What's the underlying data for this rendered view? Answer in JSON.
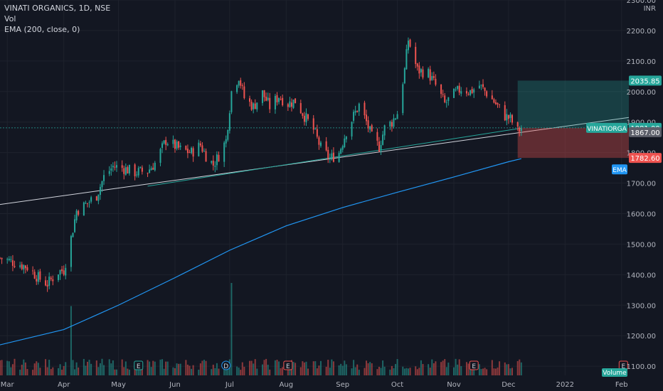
{
  "header": {
    "symbol_line": "VINATI ORGANICS, 1D, NSE",
    "volume_label": "Vol",
    "ema_label": "EMA (200, close, 0)"
  },
  "colors": {
    "background": "#131722",
    "grid": "#1e222d",
    "up": "#26a69a",
    "down": "#ef5350",
    "ema": "#2196f3",
    "trend_upper": "#d1d4dc",
    "trend_lower": "#26a69a",
    "target_zone": "#26a69a",
    "stop_zone": "#ef5350"
  },
  "chart_data": {
    "type": "candlestick",
    "y_axis": {
      "unit": "INR",
      "range": [
        1070,
        2300
      ],
      "ticks": [
        "2300.00",
        "2200.00",
        "2100.00",
        "2000.00",
        "1900.00",
        "1800.00",
        "1700.00",
        "1600.00",
        "1500.00",
        "1400.00",
        "1300.00",
        "1200.00",
        "1100.00"
      ],
      "tick_values": [
        2300,
        2200,
        2100,
        2000,
        1900,
        1800,
        1700,
        1600,
        1500,
        1400,
        1300,
        1200,
        1100
      ]
    },
    "x_axis": {
      "range": [
        "2021-02-25",
        "2022-02-05"
      ],
      "labels": [
        {
          "label": "Mar",
          "date": "2021-03-01"
        },
        {
          "label": "Apr",
          "date": "2021-04-01"
        },
        {
          "label": "May",
          "date": "2021-05-01"
        },
        {
          "label": "Jun",
          "date": "2021-06-01"
        },
        {
          "label": "Jul",
          "date": "2021-07-01"
        },
        {
          "label": "Aug",
          "date": "2021-08-01"
        },
        {
          "label": "Sep",
          "date": "2021-09-01"
        },
        {
          "label": "Oct",
          "date": "2021-10-01"
        },
        {
          "label": "Nov",
          "date": "2021-11-01"
        },
        {
          "label": "Dec",
          "date": "2021-12-01"
        },
        {
          "label": "2022",
          "date": "2022-01-01"
        },
        {
          "label": "Feb",
          "date": "2022-02-01"
        }
      ]
    },
    "price_path": [
      [
        "2021-02-25",
        1455
      ],
      [
        "2021-03-05",
        1440
      ],
      [
        "2021-03-12",
        1425
      ],
      [
        "2021-03-18",
        1390
      ],
      [
        "2021-03-23",
        1370
      ],
      [
        "2021-03-29",
        1410
      ],
      [
        "2021-04-01",
        1415
      ],
      [
        "2021-04-05",
        1520
      ],
      [
        "2021-04-08",
        1610
      ],
      [
        "2021-04-12",
        1625
      ],
      [
        "2021-04-19",
        1660
      ],
      [
        "2021-04-23",
        1720
      ],
      [
        "2021-04-28",
        1755
      ],
      [
        "2021-05-03",
        1750
      ],
      [
        "2021-05-10",
        1735
      ],
      [
        "2021-05-17",
        1740
      ],
      [
        "2021-05-21",
        1765
      ],
      [
        "2021-05-27",
        1840
      ],
      [
        "2021-05-31",
        1825
      ],
      [
        "2021-06-04",
        1810
      ],
      [
        "2021-06-10",
        1800
      ],
      [
        "2021-06-15",
        1825
      ],
      [
        "2021-06-18",
        1790
      ],
      [
        "2021-06-22",
        1760
      ],
      [
        "2021-06-25",
        1790
      ],
      [
        "2021-06-29",
        1840
      ],
      [
        "2021-07-02",
        2000
      ],
      [
        "2021-07-06",
        2050
      ],
      [
        "2021-07-09",
        1980
      ],
      [
        "2021-07-14",
        1950
      ],
      [
        "2021-07-19",
        1995
      ],
      [
        "2021-07-23",
        1950
      ],
      [
        "2021-07-28",
        1985
      ],
      [
        "2021-08-02",
        1960
      ],
      [
        "2021-08-06",
        1970
      ],
      [
        "2021-08-11",
        1920
      ],
      [
        "2021-08-16",
        1875
      ],
      [
        "2021-08-20",
        1815
      ],
      [
        "2021-08-25",
        1780
      ],
      [
        "2021-08-30",
        1800
      ],
      [
        "2021-09-03",
        1870
      ],
      [
        "2021-09-07",
        1920
      ],
      [
        "2021-09-10",
        1955
      ],
      [
        "2021-09-14",
        1900
      ],
      [
        "2021-09-17",
        1850
      ],
      [
        "2021-09-21",
        1820
      ],
      [
        "2021-09-24",
        1880
      ],
      [
        "2021-09-28",
        1900
      ],
      [
        "2021-10-01",
        1930
      ],
      [
        "2021-10-05",
        2070
      ],
      [
        "2021-10-07",
        2170
      ],
      [
        "2021-10-12",
        2070
      ],
      [
        "2021-10-18",
        2060
      ],
      [
        "2021-10-22",
        2020
      ],
      [
        "2021-10-27",
        1960
      ],
      [
        "2021-11-01",
        1990
      ],
      [
        "2021-11-05",
        2010
      ],
      [
        "2021-11-10",
        2000
      ],
      [
        "2021-11-15",
        2020
      ],
      [
        "2021-11-19",
        1995
      ],
      [
        "2021-11-24",
        1960
      ],
      [
        "2021-11-29",
        1920
      ],
      [
        "2021-12-02",
        1910
      ],
      [
        "2021-12-06",
        1870
      ],
      [
        "2021-12-08",
        1880
      ]
    ],
    "ema_200": [
      [
        "2021-02-25",
        1170
      ],
      [
        "2021-04-01",
        1220
      ],
      [
        "2021-05-01",
        1300
      ],
      [
        "2021-06-01",
        1390
      ],
      [
        "2021-07-01",
        1480
      ],
      [
        "2021-08-01",
        1560
      ],
      [
        "2021-09-01",
        1620
      ],
      [
        "2021-10-01",
        1670
      ],
      [
        "2021-11-01",
        1720
      ],
      [
        "2021-12-01",
        1770
      ],
      [
        "2021-12-08",
        1780
      ]
    ],
    "volume_spikes": [
      {
        "date": "2021-04-05",
        "relative": 0.75
      },
      {
        "date": "2021-07-02",
        "relative": 1.0
      }
    ],
    "event_markers": [
      {
        "date": "2021-05-12",
        "label": "E"
      },
      {
        "date": "2021-06-29",
        "label": "D"
      },
      {
        "date": "2021-08-02",
        "label": "E"
      },
      {
        "date": "2021-11-12",
        "label": "E"
      },
      {
        "date": "2022-02-02",
        "label": "E"
      }
    ],
    "trend_lines": [
      {
        "name": "upper",
        "from": [
          "2021-02-25",
          1630
        ],
        "to": [
          "2022-02-05",
          1915
        ]
      },
      {
        "name": "lower",
        "from": [
          "2021-05-17",
          1690
        ],
        "to": [
          "2021-12-08",
          1880
        ]
      }
    ],
    "position_zones": {
      "target_top": 2035.85,
      "entry": 1881.0,
      "stop": 1782.6,
      "start": "2021-12-06",
      "end": "2022-02-05"
    },
    "price_labels": {
      "target": "2035.85",
      "symbol": "VINATIORGA",
      "last": "1881.00",
      "mid": "1867.00",
      "stop": "1782.60",
      "ema": "EMA",
      "volume": "Volume"
    },
    "price_label_values": {
      "target": 2035.85,
      "last": 1881.0,
      "mid": 1867.0,
      "stop": 1782.6,
      "ema": 1745
    }
  }
}
